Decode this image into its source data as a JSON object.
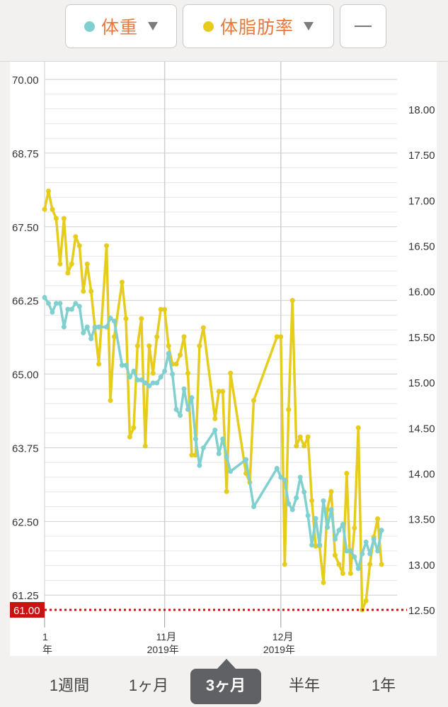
{
  "header": {
    "weight_label": "体重",
    "bodyfat_label": "体脂肪率",
    "weight_color": "#7fd0cf",
    "bodyfat_color": "#e6cc1d",
    "add_icon": "minus-icon"
  },
  "chart_data": {
    "type": "line",
    "left_axis": {
      "ylim": [
        61.0,
        70.4
      ],
      "ticks": [
        "70.00",
        "68.75",
        "67.50",
        "66.25",
        "65.00",
        "63.75",
        "62.50",
        "61.25"
      ]
    },
    "right_axis": {
      "ylim": [
        12.5,
        18.0
      ],
      "ticks": [
        "18.00",
        "17.50",
        "17.00",
        "16.50",
        "16.00",
        "15.50",
        "15.00",
        "14.50",
        "14.00",
        "13.50",
        "13.00",
        "12.50"
      ]
    },
    "x_domain": [
      "2019-10-01",
      "2019-12-31"
    ],
    "x_labels": [
      {
        "date": "2019-10-01",
        "month": "1",
        "year": "年"
      },
      {
        "date": "2019-11-01",
        "month": "11月",
        "year": "2019年"
      },
      {
        "date": "2019-12-01",
        "month": "12月",
        "year": "2019年"
      }
    ],
    "grid": true,
    "target": {
      "value": 61.0,
      "label": "61.00",
      "color": "#cc1111"
    },
    "series": [
      {
        "color": "#7fd0cf",
        "axis": "left",
        "points": [
          [
            "2019-10-01",
            66.3
          ],
          [
            "2019-10-02",
            66.2
          ],
          [
            "2019-10-03",
            66.05
          ],
          [
            "2019-10-04",
            66.2
          ],
          [
            "2019-10-05",
            66.2
          ],
          [
            "2019-10-06",
            65.8
          ],
          [
            "2019-10-07",
            66.1
          ],
          [
            "2019-10-08",
            66.1
          ],
          [
            "2019-10-09",
            66.2
          ],
          [
            "2019-10-10",
            66.15
          ],
          [
            "2019-10-11",
            65.7
          ],
          [
            "2019-10-12",
            65.8
          ],
          [
            "2019-10-13",
            65.6
          ],
          [
            "2019-10-14",
            65.8
          ],
          [
            "2019-10-15",
            65.8
          ],
          [
            "2019-10-17",
            65.8
          ],
          [
            "2019-10-18",
            65.95
          ],
          [
            "2019-10-19",
            65.9
          ],
          [
            "2019-10-21",
            65.15
          ],
          [
            "2019-10-22",
            65.15
          ],
          [
            "2019-10-23",
            64.95
          ],
          [
            "2019-10-24",
            65.05
          ],
          [
            "2019-10-25",
            64.9
          ],
          [
            "2019-10-26",
            64.9
          ],
          [
            "2019-10-27",
            64.85
          ],
          [
            "2019-10-28",
            64.8
          ],
          [
            "2019-10-29",
            64.85
          ],
          [
            "2019-10-30",
            64.85
          ],
          [
            "2019-10-31",
            64.95
          ],
          [
            "2019-11-01",
            65.05
          ],
          [
            "2019-11-02",
            65.35
          ],
          [
            "2019-11-03",
            65.0
          ],
          [
            "2019-11-04",
            64.4
          ],
          [
            "2019-11-05",
            64.3
          ],
          [
            "2019-11-06",
            64.75
          ],
          [
            "2019-11-07",
            64.4
          ],
          [
            "2019-11-08",
            64.6
          ],
          [
            "2019-11-09",
            63.9
          ],
          [
            "2019-11-10",
            63.45
          ],
          [
            "2019-11-11",
            63.75
          ],
          [
            "2019-11-14",
            64.05
          ],
          [
            "2019-11-15",
            63.65
          ],
          [
            "2019-11-16",
            63.9
          ],
          [
            "2019-11-17",
            63.6
          ],
          [
            "2019-11-18",
            63.35
          ],
          [
            "2019-11-22",
            63.55
          ],
          [
            "2019-11-24",
            62.75
          ],
          [
            "2019-11-30",
            63.4
          ],
          [
            "2019-12-01",
            63.25
          ],
          [
            "2019-12-02",
            63.2
          ],
          [
            "2019-12-03",
            62.8
          ],
          [
            "2019-12-04",
            62.7
          ],
          [
            "2019-12-05",
            62.9
          ],
          [
            "2019-12-06",
            63.25
          ],
          [
            "2019-12-07",
            63.0
          ],
          [
            "2019-12-08",
            62.6
          ],
          [
            "2019-12-09",
            62.1
          ],
          [
            "2019-12-10",
            62.55
          ],
          [
            "2019-12-11",
            62.1
          ],
          [
            "2019-12-12",
            62.85
          ],
          [
            "2019-12-13",
            62.4
          ],
          [
            "2019-12-14",
            62.7
          ],
          [
            "2019-12-15",
            62.2
          ],
          [
            "2019-12-16",
            62.35
          ],
          [
            "2019-12-17",
            62.45
          ],
          [
            "2019-12-18",
            62.0
          ],
          [
            "2019-12-19",
            62.0
          ],
          [
            "2019-12-20",
            61.9
          ],
          [
            "2019-12-21",
            61.7
          ],
          [
            "2019-12-22",
            61.95
          ],
          [
            "2019-12-23",
            62.15
          ],
          [
            "2019-12-24",
            61.95
          ],
          [
            "2019-12-25",
            62.2
          ],
          [
            "2019-12-26",
            62.0
          ],
          [
            "2019-12-27",
            62.35
          ]
        ]
      },
      {
        "color": "#e6cc1d",
        "axis": "right",
        "points": [
          [
            "2019-10-01",
            16.9
          ],
          [
            "2019-10-02",
            17.1
          ],
          [
            "2019-10-03",
            16.9
          ],
          [
            "2019-10-04",
            16.8
          ],
          [
            "2019-10-05",
            16.3
          ],
          [
            "2019-10-06",
            16.8
          ],
          [
            "2019-10-07",
            16.2
          ],
          [
            "2019-10-08",
            16.3
          ],
          [
            "2019-10-09",
            16.6
          ],
          [
            "2019-10-10",
            16.5
          ],
          [
            "2019-10-11",
            16.0
          ],
          [
            "2019-10-12",
            16.3
          ],
          [
            "2019-10-13",
            16.0
          ],
          [
            "2019-10-14",
            15.6
          ],
          [
            "2019-10-15",
            15.2
          ],
          [
            "2019-10-17",
            16.5
          ],
          [
            "2019-10-18",
            14.8
          ],
          [
            "2019-10-19",
            15.5
          ],
          [
            "2019-10-21",
            16.1
          ],
          [
            "2019-10-22",
            15.7
          ],
          [
            "2019-10-23",
            14.4
          ],
          [
            "2019-10-24",
            14.5
          ],
          [
            "2019-10-25",
            15.4
          ],
          [
            "2019-10-26",
            15.7
          ],
          [
            "2019-10-27",
            14.3
          ],
          [
            "2019-10-28",
            15.4
          ],
          [
            "2019-10-29",
            15.1
          ],
          [
            "2019-10-30",
            15.5
          ],
          [
            "2019-10-31",
            15.8
          ],
          [
            "2019-11-01",
            15.8
          ],
          [
            "2019-11-02",
            15.4
          ],
          [
            "2019-11-03",
            15.2
          ],
          [
            "2019-11-04",
            15.2
          ],
          [
            "2019-11-05",
            15.3
          ],
          [
            "2019-11-06",
            15.5
          ],
          [
            "2019-11-07",
            15.1
          ],
          [
            "2019-11-08",
            14.2
          ],
          [
            "2019-11-09",
            14.2
          ],
          [
            "2019-11-10",
            15.4
          ],
          [
            "2019-11-11",
            15.6
          ],
          [
            "2019-11-14",
            14.6
          ],
          [
            "2019-11-15",
            14.9
          ],
          [
            "2019-11-16",
            14.9
          ],
          [
            "2019-11-17",
            13.8
          ],
          [
            "2019-11-18",
            15.1
          ],
          [
            "2019-11-22",
            14.0
          ],
          [
            "2019-11-23",
            13.9
          ],
          [
            "2019-11-24",
            14.8
          ],
          [
            "2019-11-30",
            15.5
          ],
          [
            "2019-12-01",
            15.5
          ],
          [
            "2019-12-02",
            13.0
          ],
          [
            "2019-12-03",
            14.7
          ],
          [
            "2019-12-04",
            15.9
          ],
          [
            "2019-12-05",
            14.3
          ],
          [
            "2019-12-06",
            14.4
          ],
          [
            "2019-12-07",
            14.3
          ],
          [
            "2019-12-08",
            14.4
          ],
          [
            "2019-12-09",
            13.7
          ],
          [
            "2019-12-10",
            13.2
          ],
          [
            "2019-12-11",
            13.2
          ],
          [
            "2019-12-12",
            12.8
          ],
          [
            "2019-12-13",
            13.6
          ],
          [
            "2019-12-14",
            13.8
          ],
          [
            "2019-12-15",
            13.1
          ],
          [
            "2019-12-16",
            13.0
          ],
          [
            "2019-12-17",
            12.9
          ],
          [
            "2019-12-18",
            14.0
          ],
          [
            "2019-12-19",
            12.9
          ],
          [
            "2019-12-20",
            13.4
          ],
          [
            "2019-12-21",
            14.5
          ],
          [
            "2019-12-22",
            12.5
          ],
          [
            "2019-12-23",
            12.6
          ],
          [
            "2019-12-24",
            13.0
          ],
          [
            "2019-12-25",
            13.3
          ],
          [
            "2019-12-26",
            13.5
          ],
          [
            "2019-12-27",
            13.0
          ]
        ]
      }
    ]
  },
  "ranges": {
    "items": [
      {
        "label": "1週間",
        "active": false
      },
      {
        "label": "1ヶ月",
        "active": false
      },
      {
        "label": "3ヶ月",
        "active": true
      },
      {
        "label": "半年",
        "active": false
      },
      {
        "label": "1年",
        "active": false
      }
    ]
  }
}
